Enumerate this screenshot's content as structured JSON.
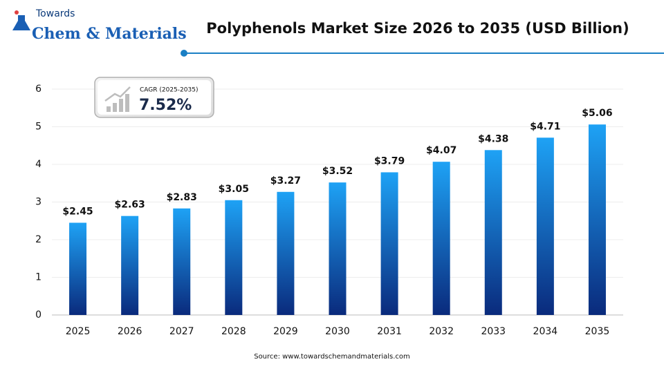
{
  "logo": {
    "top": "Towards",
    "main": "Chem & Materials"
  },
  "chart_data": {
    "type": "bar",
    "title": "Polyphenols Market Size 2026 to 2035 (USD Billion)",
    "categories": [
      "2025",
      "2026",
      "2027",
      "2028",
      "2029",
      "2030",
      "2031",
      "2032",
      "2033",
      "2034",
      "2035"
    ],
    "values": [
      2.45,
      2.63,
      2.83,
      3.05,
      3.27,
      3.52,
      3.79,
      4.07,
      4.38,
      4.71,
      5.06
    ],
    "value_labels": [
      "$2.45",
      "$2.63",
      "$2.83",
      "$3.05",
      "$3.27",
      "$3.52",
      "$3.79",
      "$4.07",
      "$4.38",
      "$4.71",
      "$5.06"
    ],
    "gradient": [
      "#1ea2f5",
      "#0a2a7c"
    ],
    "ylim": [
      0,
      6
    ],
    "yticks": [
      0,
      1,
      2,
      3,
      4,
      5,
      6
    ],
    "grid": true,
    "annotation": {
      "label": "CAGR (2025-2035)",
      "value": "7.52%"
    },
    "source": "Source: www.towardschemandmaterials.com"
  }
}
